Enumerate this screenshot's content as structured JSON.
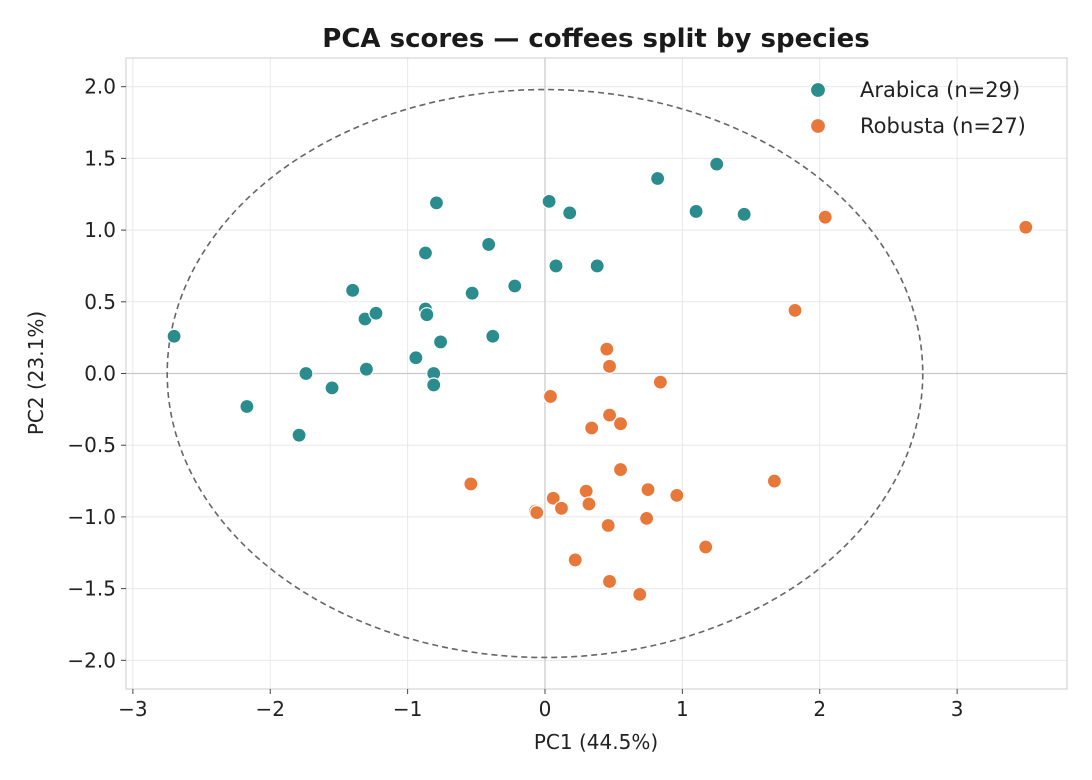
{
  "chart_data": {
    "type": "scatter",
    "title": "PCA scores — coffees split by species",
    "xlabel": "PC1 (44.5%)",
    "ylabel": "PC2 (23.1%)",
    "xlim": [
      -3.05,
      3.8
    ],
    "ylim": [
      -2.2,
      2.2
    ],
    "xticks": [
      -3,
      -2,
      -1,
      0,
      1,
      2,
      3
    ],
    "xtick_labels": [
      "−3",
      "−2",
      "−1",
      "0",
      "1",
      "2",
      "3"
    ],
    "yticks": [
      -2.0,
      -1.5,
      -1.0,
      -0.5,
      0.0,
      0.5,
      1.0,
      1.5,
      2.0
    ],
    "ytick_labels": [
      "−2.0",
      "−1.5",
      "−1.0",
      "−0.5",
      "0.0",
      "0.5",
      "1.0",
      "1.5",
      "2.0"
    ],
    "grid": true,
    "legend_position": "top-right",
    "reference_lines": {
      "x": 0,
      "y": 0
    },
    "confidence_ellipse": {
      "center": [
        0,
        0
      ],
      "semi_axis_x": 2.75,
      "semi_axis_y": 1.98,
      "style": "dashed"
    },
    "series": [
      {
        "name": "Arabica (n=29)",
        "color": "#2a8c8c",
        "points": [
          [
            -2.7,
            0.26
          ],
          [
            -2.17,
            -0.23
          ],
          [
            -1.79,
            -0.43
          ],
          [
            -1.74,
            0.0
          ],
          [
            -1.55,
            -0.1
          ],
          [
            -1.4,
            0.58
          ],
          [
            -1.31,
            0.38
          ],
          [
            -1.3,
            0.03
          ],
          [
            -1.23,
            0.42
          ],
          [
            -0.94,
            0.11
          ],
          [
            -0.87,
            0.84
          ],
          [
            -0.87,
            0.45
          ],
          [
            -0.86,
            0.41
          ],
          [
            -0.81,
            0.0
          ],
          [
            -0.81,
            -0.08
          ],
          [
            -0.79,
            1.19
          ],
          [
            -0.76,
            0.22
          ],
          [
            -0.41,
            0.9
          ],
          [
            -0.38,
            0.26
          ],
          [
            -0.53,
            0.56
          ],
          [
            -0.22,
            0.61
          ],
          [
            0.03,
            1.2
          ],
          [
            0.08,
            0.75
          ],
          [
            0.18,
            1.12
          ],
          [
            0.38,
            0.75
          ],
          [
            0.82,
            1.36
          ],
          [
            1.1,
            1.13
          ],
          [
            1.25,
            1.46
          ],
          [
            1.45,
            1.11
          ]
        ]
      },
      {
        "name": "Robusta (n=27)",
        "color": "#e8773a",
        "points": [
          [
            -0.54,
            -0.77
          ],
          [
            -0.07,
            -0.96
          ],
          [
            -0.06,
            -0.97
          ],
          [
            0.04,
            -0.16
          ],
          [
            0.06,
            -0.87
          ],
          [
            0.12,
            -0.94
          ],
          [
            0.22,
            -1.3
          ],
          [
            0.3,
            -0.82
          ],
          [
            0.32,
            -0.91
          ],
          [
            0.34,
            -0.38
          ],
          [
            0.45,
            0.17
          ],
          [
            0.46,
            -1.06
          ],
          [
            0.47,
            0.05
          ],
          [
            0.47,
            -1.45
          ],
          [
            0.47,
            -0.29
          ],
          [
            0.55,
            -0.35
          ],
          [
            0.55,
            -0.67
          ],
          [
            0.69,
            -1.54
          ],
          [
            0.74,
            -1.01
          ],
          [
            0.75,
            -0.81
          ],
          [
            0.84,
            -0.06
          ],
          [
            0.96,
            -0.85
          ],
          [
            1.17,
            -1.21
          ],
          [
            1.67,
            -0.75
          ],
          [
            1.82,
            0.44
          ],
          [
            2.04,
            1.09
          ],
          [
            3.5,
            1.02
          ]
        ]
      }
    ]
  }
}
